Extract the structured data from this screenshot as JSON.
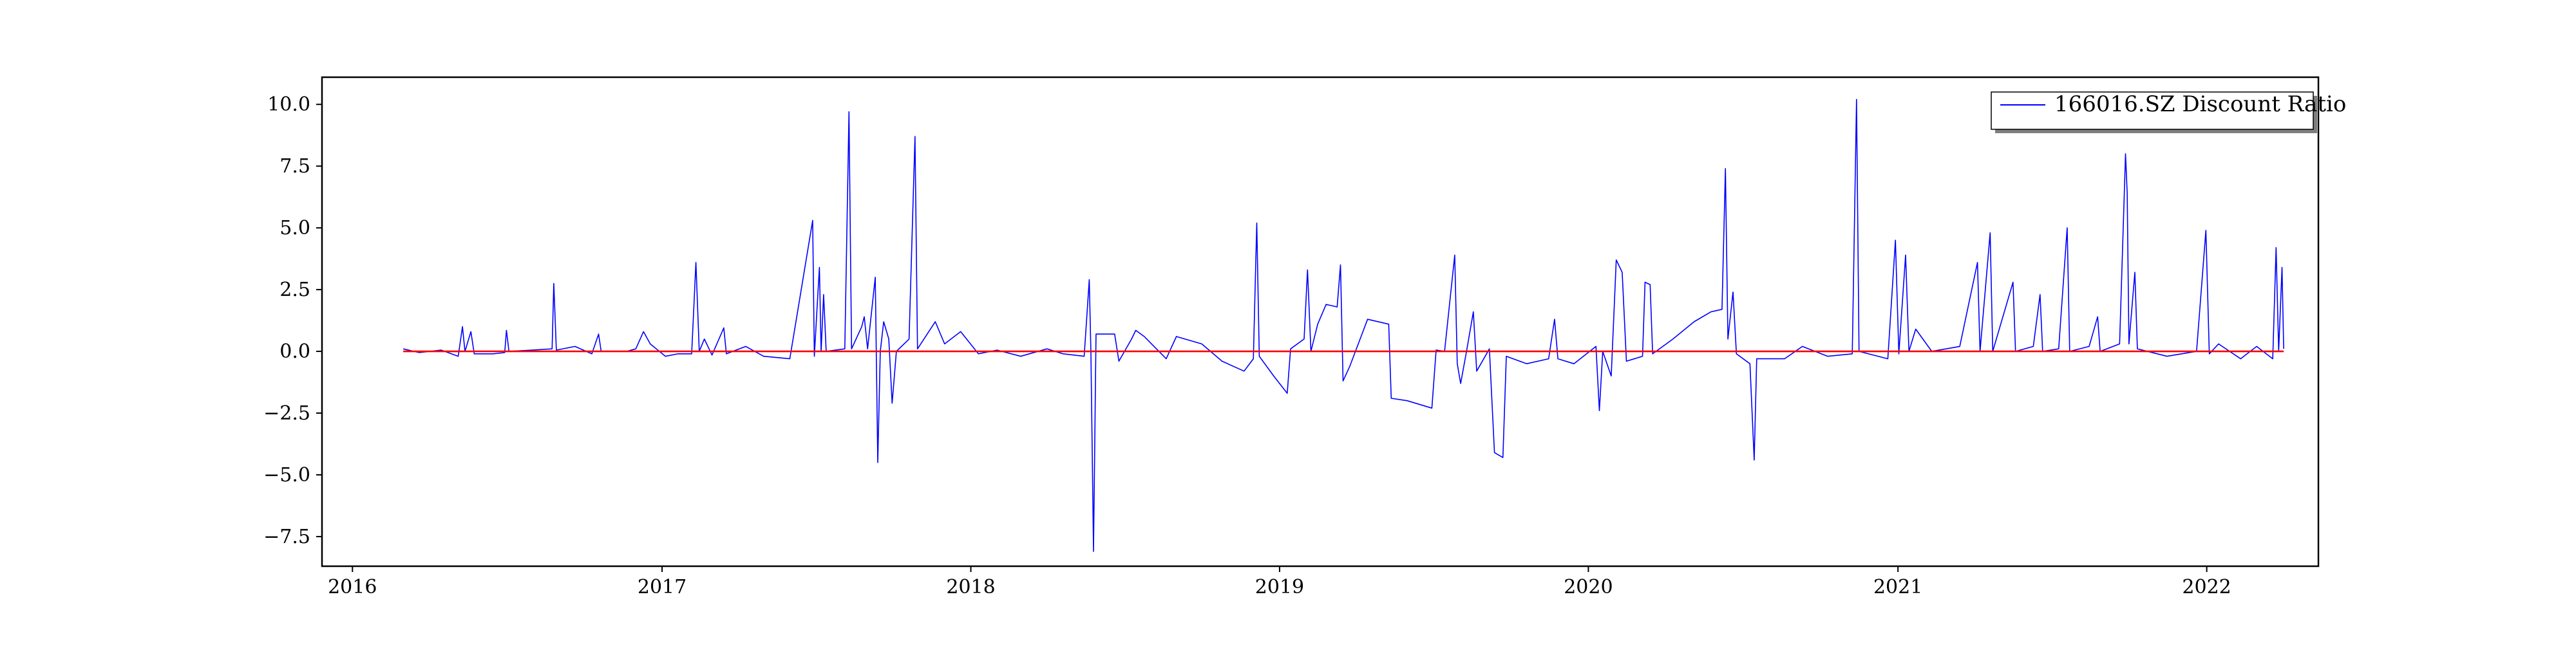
{
  "chart_data": {
    "type": "line",
    "title": "",
    "xlabel": "",
    "ylabel": "",
    "x_range": [
      "2015-11-26",
      "2022-05-13"
    ],
    "ylim": [
      -8.7,
      11.1
    ],
    "grid": false,
    "legend_position": "upper-right",
    "x_ticks": [
      {
        "date": "2016-01-01",
        "label": "2016"
      },
      {
        "date": "2017-01-01",
        "label": "2017"
      },
      {
        "date": "2018-01-01",
        "label": "2018"
      },
      {
        "date": "2019-01-01",
        "label": "2019"
      },
      {
        "date": "2020-01-01",
        "label": "2020"
      },
      {
        "date": "2021-01-01",
        "label": "2021"
      },
      {
        "date": "2022-01-01",
        "label": "2022"
      }
    ],
    "y_ticks": [
      {
        "value": 10.0,
        "label": "10.0"
      },
      {
        "value": 7.5,
        "label": "7.5"
      },
      {
        "value": 5.0,
        "label": "5.0"
      },
      {
        "value": 2.5,
        "label": "2.5"
      },
      {
        "value": 0.0,
        "label": "0.0"
      },
      {
        "value": -2.5,
        "label": "−2.5"
      },
      {
        "value": -5.0,
        "label": "−5.0"
      },
      {
        "value": -7.5,
        "label": "−7.5"
      }
    ],
    "series": [
      {
        "name": "166016.SZ Discount Ratio",
        "color": "#0000ff",
        "points": [
          [
            "2016-03-01",
            0.1
          ],
          [
            "2016-03-20",
            -0.05
          ],
          [
            "2016-04-15",
            0.05
          ],
          [
            "2016-05-05",
            -0.2
          ],
          [
            "2016-05-10",
            1.0
          ],
          [
            "2016-05-13",
            0.0
          ],
          [
            "2016-05-20",
            0.8
          ],
          [
            "2016-05-24",
            -0.1
          ],
          [
            "2016-06-15",
            -0.1
          ],
          [
            "2016-06-29",
            -0.05
          ],
          [
            "2016-07-01",
            0.85
          ],
          [
            "2016-07-04",
            0.0
          ],
          [
            "2016-08-01",
            0.05
          ],
          [
            "2016-08-24",
            0.1
          ],
          [
            "2016-08-26",
            2.75
          ],
          [
            "2016-08-29",
            0.05
          ],
          [
            "2016-09-20",
            0.2
          ],
          [
            "2016-10-10",
            -0.1
          ],
          [
            "2016-10-18",
            0.7
          ],
          [
            "2016-10-21",
            0.0
          ],
          [
            "2016-11-20",
            0.0
          ],
          [
            "2016-12-01",
            0.1
          ],
          [
            "2016-12-10",
            0.8
          ],
          [
            "2016-12-18",
            0.3
          ],
          [
            "2017-01-05",
            -0.2
          ],
          [
            "2017-01-20",
            -0.1
          ],
          [
            "2017-02-05",
            -0.1
          ],
          [
            "2017-02-10",
            3.6
          ],
          [
            "2017-02-14",
            0.0
          ],
          [
            "2017-02-20",
            0.5
          ],
          [
            "2017-03-01",
            -0.15
          ],
          [
            "2017-03-15",
            0.95
          ],
          [
            "2017-03-18",
            -0.1
          ],
          [
            "2017-04-10",
            0.2
          ],
          [
            "2017-05-01",
            -0.2
          ],
          [
            "2017-06-01",
            -0.3
          ],
          [
            "2017-06-28",
            5.3
          ],
          [
            "2017-06-30",
            -0.2
          ],
          [
            "2017-07-04",
            2.2
          ],
          [
            "2017-07-06",
            3.4
          ],
          [
            "2017-07-08",
            0.0
          ],
          [
            "2017-07-11",
            2.3
          ],
          [
            "2017-07-14",
            0.0
          ],
          [
            "2017-08-05",
            0.1
          ],
          [
            "2017-08-10",
            9.7
          ],
          [
            "2017-08-13",
            0.1
          ],
          [
            "2017-08-25",
            1.0
          ],
          [
            "2017-08-28",
            1.4
          ],
          [
            "2017-09-01",
            0.1
          ],
          [
            "2017-09-10",
            3.0
          ],
          [
            "2017-09-13",
            -4.5
          ],
          [
            "2017-09-16",
            0.0
          ],
          [
            "2017-09-20",
            1.2
          ],
          [
            "2017-09-26",
            0.5
          ],
          [
            "2017-09-30",
            -2.1
          ],
          [
            "2017-10-05",
            0.0
          ],
          [
            "2017-10-20",
            0.5
          ],
          [
            "2017-10-27",
            8.7
          ],
          [
            "2017-10-30",
            0.1
          ],
          [
            "2017-11-20",
            1.2
          ],
          [
            "2017-12-01",
            0.3
          ],
          [
            "2017-12-20",
            0.8
          ],
          [
            "2018-01-10",
            -0.1
          ],
          [
            "2018-02-01",
            0.05
          ],
          [
            "2018-03-01",
            -0.2
          ],
          [
            "2018-04-01",
            0.1
          ],
          [
            "2018-04-20",
            -0.1
          ],
          [
            "2018-05-15",
            -0.2
          ],
          [
            "2018-05-21",
            2.9
          ],
          [
            "2018-05-23",
            -0.1
          ],
          [
            "2018-05-26",
            -8.1
          ],
          [
            "2018-05-29",
            0.7
          ],
          [
            "2018-06-20",
            0.7
          ],
          [
            "2018-06-25",
            -0.4
          ],
          [
            "2018-07-10",
            0.5
          ],
          [
            "2018-07-15",
            0.85
          ],
          [
            "2018-07-25",
            0.6
          ],
          [
            "2018-08-20",
            -0.3
          ],
          [
            "2018-09-01",
            0.6
          ],
          [
            "2018-10-01",
            0.3
          ],
          [
            "2018-10-25",
            -0.4
          ],
          [
            "2018-11-20",
            -0.8
          ],
          [
            "2018-12-01",
            -0.3
          ],
          [
            "2018-12-05",
            5.2
          ],
          [
            "2018-12-08",
            -0.2
          ],
          [
            "2018-12-25",
            -1.0
          ],
          [
            "2019-01-10",
            -1.7
          ],
          [
            "2019-01-14",
            0.1
          ],
          [
            "2019-01-30",
            0.5
          ],
          [
            "2019-02-03",
            3.3
          ],
          [
            "2019-02-07",
            0.0
          ],
          [
            "2019-02-15",
            1.1
          ],
          [
            "2019-02-25",
            1.9
          ],
          [
            "2019-03-10",
            1.8
          ],
          [
            "2019-03-14",
            3.5
          ],
          [
            "2019-03-17",
            -1.2
          ],
          [
            "2019-03-25",
            -0.6
          ],
          [
            "2019-04-15",
            1.3
          ],
          [
            "2019-05-10",
            1.1
          ],
          [
            "2019-05-13",
            -1.9
          ],
          [
            "2019-06-01",
            -2.0
          ],
          [
            "2019-06-30",
            -2.3
          ],
          [
            "2019-07-05",
            0.05
          ],
          [
            "2019-07-15",
            0.0
          ],
          [
            "2019-07-27",
            3.9
          ],
          [
            "2019-07-30",
            -0.5
          ],
          [
            "2019-08-03",
            -1.3
          ],
          [
            "2019-08-10",
            0.0
          ],
          [
            "2019-08-18",
            1.6
          ],
          [
            "2019-08-22",
            -0.8
          ],
          [
            "2019-09-06",
            0.1
          ],
          [
            "2019-09-12",
            -4.1
          ],
          [
            "2019-09-22",
            -4.3
          ],
          [
            "2019-09-26",
            -0.2
          ],
          [
            "2019-10-20",
            -0.5
          ],
          [
            "2019-11-15",
            -0.3
          ],
          [
            "2019-11-22",
            1.3
          ],
          [
            "2019-11-26",
            -0.3
          ],
          [
            "2019-12-15",
            -0.5
          ],
          [
            "2020-01-10",
            0.2
          ],
          [
            "2020-01-14",
            -2.4
          ],
          [
            "2020-01-18",
            0.0
          ],
          [
            "2020-01-28",
            -1.0
          ],
          [
            "2020-02-03",
            3.7
          ],
          [
            "2020-02-10",
            3.2
          ],
          [
            "2020-02-15",
            -0.4
          ],
          [
            "2020-03-05",
            -0.2
          ],
          [
            "2020-03-08",
            2.8
          ],
          [
            "2020-03-14",
            2.7
          ],
          [
            "2020-03-17",
            -0.1
          ],
          [
            "2020-04-10",
            0.5
          ],
          [
            "2020-05-05",
            1.2
          ],
          [
            "2020-05-25",
            1.6
          ],
          [
            "2020-06-07",
            1.7
          ],
          [
            "2020-06-11",
            7.4
          ],
          [
            "2020-06-14",
            0.5
          ],
          [
            "2020-06-20",
            2.4
          ],
          [
            "2020-06-24",
            -0.1
          ],
          [
            "2020-07-10",
            -0.5
          ],
          [
            "2020-07-15",
            -4.4
          ],
          [
            "2020-07-18",
            -0.3
          ],
          [
            "2020-08-20",
            -0.3
          ],
          [
            "2020-09-10",
            0.2
          ],
          [
            "2020-10-10",
            -0.2
          ],
          [
            "2020-11-08",
            -0.1
          ],
          [
            "2020-11-13",
            10.2
          ],
          [
            "2020-11-16",
            0.0
          ],
          [
            "2020-12-20",
            -0.3
          ],
          [
            "2020-12-29",
            4.5
          ],
          [
            "2021-01-02",
            -0.1
          ],
          [
            "2021-01-10",
            3.9
          ],
          [
            "2021-01-14",
            0.0
          ],
          [
            "2021-01-22",
            0.9
          ],
          [
            "2021-02-10",
            0.0
          ],
          [
            "2021-03-15",
            0.2
          ],
          [
            "2021-04-05",
            3.6
          ],
          [
            "2021-04-08",
            0.0
          ],
          [
            "2021-04-20",
            4.8
          ],
          [
            "2021-04-23",
            0.0
          ],
          [
            "2021-05-17",
            2.8
          ],
          [
            "2021-05-20",
            0.0
          ],
          [
            "2021-06-10",
            0.2
          ],
          [
            "2021-06-18",
            2.3
          ],
          [
            "2021-06-21",
            0.0
          ],
          [
            "2021-07-10",
            0.1
          ],
          [
            "2021-07-20",
            5.0
          ],
          [
            "2021-07-23",
            0.0
          ],
          [
            "2021-08-15",
            0.2
          ],
          [
            "2021-08-25",
            1.4
          ],
          [
            "2021-08-28",
            0.0
          ],
          [
            "2021-09-20",
            0.3
          ],
          [
            "2021-09-27",
            8.0
          ],
          [
            "2021-09-29",
            6.4
          ],
          [
            "2021-10-01",
            0.3
          ],
          [
            "2021-10-08",
            3.2
          ],
          [
            "2021-10-11",
            0.1
          ],
          [
            "2021-11-15",
            -0.2
          ],
          [
            "2021-12-20",
            0.0
          ],
          [
            "2021-12-31",
            4.9
          ],
          [
            "2022-01-04",
            -0.1
          ],
          [
            "2022-01-15",
            0.3
          ],
          [
            "2022-02-10",
            -0.3
          ],
          [
            "2022-03-01",
            0.2
          ],
          [
            "2022-03-20",
            -0.3
          ],
          [
            "2022-03-24",
            4.2
          ],
          [
            "2022-03-27",
            0.0
          ],
          [
            "2022-03-31",
            3.4
          ],
          [
            "2022-04-02",
            0.1
          ]
        ]
      },
      {
        "name": "",
        "color": "#ff0000",
        "points": [
          [
            "2016-03-01",
            0.0
          ],
          [
            "2022-04-02",
            0.0
          ]
        ]
      }
    ]
  }
}
